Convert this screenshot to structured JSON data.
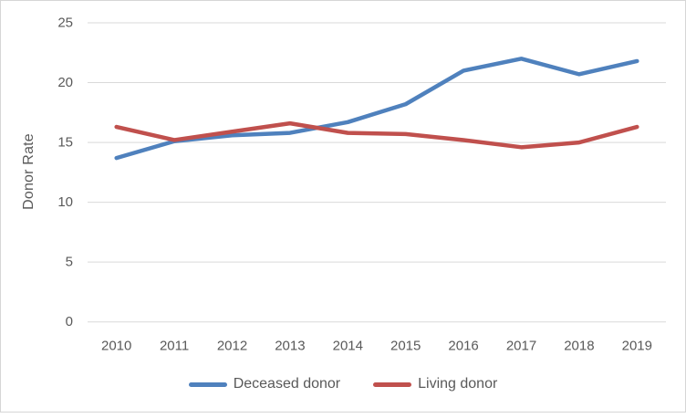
{
  "chart_data": {
    "type": "line",
    "title": "",
    "xlabel": "",
    "ylabel": "Donor Rate",
    "categories": [
      "2010",
      "2011",
      "2012",
      "2013",
      "2014",
      "2015",
      "2016",
      "2017",
      "2018",
      "2019"
    ],
    "series": [
      {
        "name": "Deceased donor",
        "color": "#4f81bd",
        "values": [
          13.7,
          15.1,
          15.6,
          15.8,
          16.7,
          18.2,
          21.0,
          22.0,
          20.7,
          21.8
        ]
      },
      {
        "name": "Living donor",
        "color": "#c0504d",
        "values": [
          16.3,
          15.2,
          15.9,
          16.6,
          15.8,
          15.7,
          15.2,
          14.6,
          15.0,
          16.3
        ]
      }
    ],
    "ylim": [
      0,
      25
    ],
    "yticks": [
      0,
      5,
      10,
      15,
      20,
      25
    ],
    "grid": true,
    "legend_position": "bottom",
    "colors": {
      "gridline": "#d9d9d9",
      "axis_text": "#595959",
      "frame_border": "#d6d6d6",
      "background": "#ffffff"
    }
  }
}
